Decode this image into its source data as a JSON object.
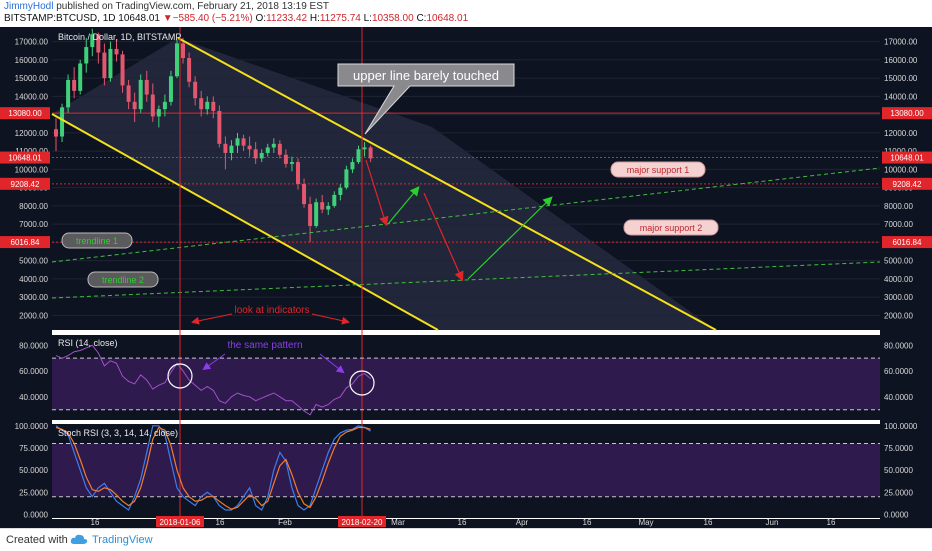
{
  "header": {
    "user": "JimmyHodl",
    "published": "published on TradingView.com, February 21, 2018 13:19 EST",
    "symbol": "BITSTAMP:BTCUSD, 1D",
    "last": "10648.01",
    "change": "−585.40 (−5.21%)",
    "o_label": "O:",
    "o": "11233.42",
    "h_label": "H:",
    "h": "11275.74",
    "l_label": "L:",
    "l": "10358.00",
    "c_label": "C:",
    "c": "10648.01"
  },
  "chart_data": [
    {
      "type": "candlestick",
      "title": "Bitcoin / Dollar, 1D, BITSTAMP",
      "ylim": [
        1200,
        17800
      ],
      "x_ticks": [
        "16",
        "2018-01-06",
        "16",
        "Feb",
        "2018-02-20",
        "Mar",
        "16",
        "Apr",
        "16",
        "May",
        "16",
        "Jun",
        "16"
      ],
      "y_ticks": [
        2000,
        3000,
        4000,
        5000,
        6000,
        7000,
        8000,
        9000,
        10000,
        11000,
        12000,
        13000,
        14000,
        15000,
        16000,
        17000
      ],
      "y_tick_labels": [
        "2000.00",
        "3000.00",
        "4000.00",
        "5000.00",
        "6000.00",
        "7000.00",
        "8000.00",
        "9000.00",
        "10000.00",
        "11000.00",
        "12000.00",
        "13000.00",
        "14000.00",
        "15000.00",
        "16000.00",
        "17000.00"
      ],
      "levels": [
        {
          "value": 13080,
          "label": "13080.00",
          "color": "#e0262b"
        },
        {
          "value": 10648.01,
          "label": "10648.01",
          "color": "#e0262b"
        },
        {
          "value": 9208.42,
          "label": "9208.42",
          "color": "#e0262b"
        },
        {
          "value": 6016.84,
          "label": "6016.84",
          "color": "#e0262b"
        }
      ],
      "series": [
        {
          "name": "BTCUSD",
          "ohlc": [
            [
              12200,
              12800,
              11000,
              11800
            ],
            [
              11800,
              13600,
              11500,
              13400
            ],
            [
              13400,
              15200,
              13100,
              14900
            ],
            [
              14900,
              15600,
              13900,
              14300
            ],
            [
              14300,
              16000,
              14100,
              15800
            ],
            [
              15800,
              17200,
              15300,
              16700
            ],
            [
              16700,
              17700,
              16200,
              17400
            ],
            [
              17400,
              17500,
              15800,
              16400
            ],
            [
              16400,
              16900,
              14600,
              15000
            ],
            [
              15000,
              17000,
              14800,
              16600
            ],
            [
              16600,
              17100,
              15900,
              16300
            ],
            [
              16300,
              16500,
              14200,
              14600
            ],
            [
              14600,
              14900,
              13300,
              13700
            ],
            [
              13700,
              14200,
              12600,
              13300
            ],
            [
              13300,
              15200,
              13100,
              14900
            ],
            [
              14900,
              15400,
              13700,
              14100
            ],
            [
              14100,
              14700,
              12600,
              12900
            ],
            [
              12900,
              13500,
              12300,
              13300
            ],
            [
              13300,
              14100,
              12900,
              13700
            ],
            [
              13700,
              15400,
              13500,
              15100
            ],
            [
              15100,
              17100,
              15000,
              16900
            ],
            [
              16900,
              17200,
              15800,
              16100
            ],
            [
              16100,
              16400,
              14500,
              14800
            ],
            [
              14800,
              15100,
              13500,
              13900
            ],
            [
              13900,
              14300,
              12900,
              13300
            ],
            [
              13300,
              14000,
              13000,
              13700
            ],
            [
              13700,
              14000,
              12800,
              13200
            ],
            [
              13200,
              13500,
              11200,
              11400
            ],
            [
              11400,
              11800,
              10000,
              10900
            ],
            [
              10900,
              11600,
              10500,
              11300
            ],
            [
              11300,
              12000,
              10900,
              11700
            ],
            [
              11700,
              11900,
              11000,
              11300
            ],
            [
              11300,
              11800,
              10700,
              11100
            ],
            [
              11100,
              11500,
              10300,
              10600
            ],
            [
              10600,
              11100,
              10400,
              10900
            ],
            [
              10900,
              11400,
              10700,
              11200
            ],
            [
              11200,
              11700,
              10900,
              11400
            ],
            [
              11400,
              11600,
              10600,
              10800
            ],
            [
              10800,
              11100,
              10100,
              10300
            ],
            [
              10300,
              10700,
              9900,
              10400
            ],
            [
              10400,
              10600,
              8900,
              9200
            ],
            [
              9200,
              9500,
              7900,
              8100
            ],
            [
              8100,
              8500,
              6000,
              6900
            ],
            [
              6900,
              8400,
              6800,
              8200
            ],
            [
              8200,
              8600,
              7600,
              7800
            ],
            [
              7800,
              8200,
              7500,
              8000
            ],
            [
              8000,
              8800,
              7900,
              8600
            ],
            [
              8600,
              9200,
              8300,
              9000
            ],
            [
              9000,
              10200,
              8900,
              10000
            ],
            [
              10000,
              10600,
              9800,
              10400
            ],
            [
              10400,
              11300,
              10300,
              11100
            ],
            [
              11100,
              11500,
              10700,
              11200
            ],
            [
              11200,
              11300,
              10400,
              10600
            ]
          ]
        }
      ]
    },
    {
      "type": "line",
      "title": "RSI (14, close)",
      "ylim": [
        22,
        88
      ],
      "y_ticks": [
        40,
        60,
        80
      ],
      "y_tick_labels": [
        "40.0000",
        "60.0000",
        "80.0000"
      ],
      "bands": [
        30,
        70
      ],
      "series": [
        {
          "name": "RSI",
          "values": [
            72,
            70,
            72,
            75,
            76,
            78,
            80,
            74,
            64,
            68,
            66,
            56,
            52,
            50,
            57,
            53,
            46,
            49,
            51,
            59,
            66,
            60,
            53,
            49,
            45,
            48,
            45,
            37,
            35,
            40,
            43,
            41,
            40,
            37,
            39,
            41,
            43,
            40,
            37,
            37,
            33,
            29,
            26,
            34,
            32,
            34,
            38,
            40,
            47,
            50,
            56,
            58,
            54
          ]
        }
      ]
    },
    {
      "type": "line",
      "title": "Stoch RSI (3, 3, 14, 14, close)",
      "ylim": [
        -4,
        102
      ],
      "y_ticks": [
        0,
        25,
        50,
        75,
        100
      ],
      "y_tick_labels": [
        "0.0000",
        "25.0000",
        "50.0000",
        "75.0000",
        "100.0000"
      ],
      "bands": [
        20,
        80
      ],
      "series": [
        {
          "name": "K",
          "color": "#3d7cf0",
          "values": [
            100,
            95,
            90,
            70,
            50,
            30,
            20,
            30,
            35,
            25,
            15,
            10,
            5,
            20,
            40,
            70,
            100,
            100,
            90,
            60,
            30,
            20,
            15,
            10,
            20,
            25,
            20,
            10,
            5,
            5,
            10,
            20,
            30,
            10,
            5,
            20,
            50,
            70,
            60,
            30,
            10,
            5,
            10,
            30,
            50,
            70,
            85,
            92,
            95,
            96,
            100,
            98,
            94
          ]
        },
        {
          "name": "D",
          "color": "#f07c2d",
          "values": [
            98,
            96,
            92,
            80,
            62,
            42,
            28,
            26,
            30,
            28,
            22,
            15,
            10,
            15,
            30,
            55,
            85,
            98,
            95,
            78,
            50,
            30,
            20,
            15,
            16,
            20,
            20,
            15,
            10,
            6,
            8,
            15,
            22,
            18,
            10,
            15,
            35,
            55,
            62,
            45,
            25,
            12,
            8,
            20,
            38,
            58,
            75,
            88,
            93,
            95,
            98,
            98,
            96
          ]
        }
      ]
    }
  ],
  "annotations": {
    "upper_line": "upper line barely touched",
    "major_support_1": "major support 1",
    "major_support_2": "major support 2",
    "trendline_1": "trendline 1",
    "trendline_2": "trendline 2",
    "look_at_indicators": "look at indicators",
    "same_pattern": "the same pattern"
  },
  "footer": {
    "created": "Created with",
    "brand": "TradingView"
  }
}
